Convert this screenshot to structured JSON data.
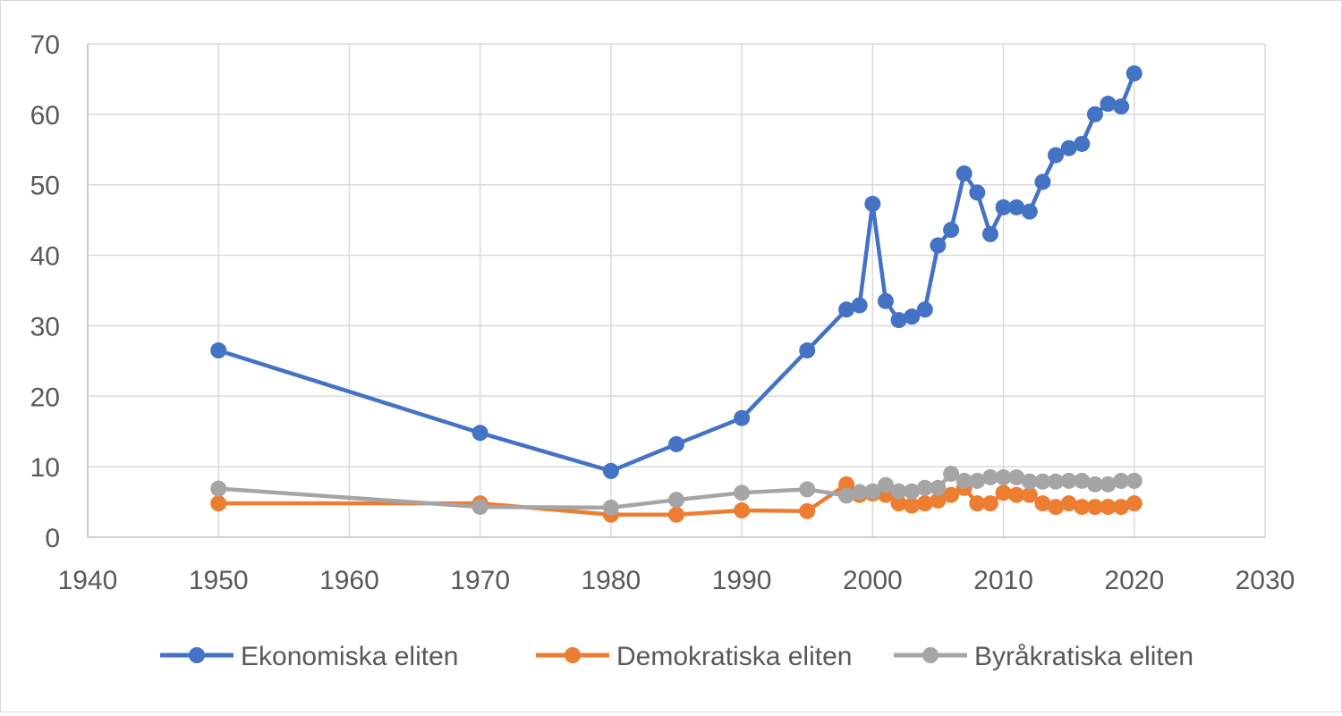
{
  "chart_data": {
    "type": "scatter",
    "mode": "lines+markers",
    "title": "",
    "xlabel": "",
    "ylabel": "",
    "xlim": [
      1940,
      2030
    ],
    "ylim": [
      0,
      70
    ],
    "x_ticks": [
      "1940",
      "1950",
      "1960",
      "1970",
      "1980",
      "1990",
      "2000",
      "2010",
      "2020",
      "2030"
    ],
    "y_ticks": [
      "0",
      "10",
      "20",
      "30",
      "40",
      "50",
      "60",
      "70"
    ],
    "grid": "on",
    "legend_position": "bottom",
    "series": [
      {
        "name": "Ekonomiska eliten",
        "color": "#4472c4",
        "x": [
          1950,
          1970,
          1980,
          1985,
          1990,
          1995,
          1998,
          1999,
          2000,
          2001,
          2002,
          2003,
          2004,
          2005,
          2006,
          2007,
          2008,
          2009,
          2010,
          2011,
          2012,
          2013,
          2014,
          2015,
          2016,
          2017,
          2018,
          2019,
          2020
        ],
        "y": [
          26.5,
          14.8,
          9.4,
          13.2,
          16.9,
          26.5,
          32.3,
          32.9,
          47.3,
          33.5,
          30.8,
          31.3,
          32.3,
          41.4,
          43.6,
          51.6,
          48.9,
          43.0,
          46.8,
          46.8,
          46.2,
          50.4,
          54.2,
          55.2,
          55.8,
          60.0,
          61.5,
          61.1,
          65.8
        ]
      },
      {
        "name": "Demokratiska eliten",
        "color": "#ed7d31",
        "x": [
          1950,
          1970,
          1980,
          1985,
          1990,
          1995,
          1998,
          1999,
          2000,
          2001,
          2002,
          2003,
          2004,
          2005,
          2006,
          2007,
          2008,
          2009,
          2010,
          2011,
          2012,
          2013,
          2014,
          2015,
          2016,
          2017,
          2018,
          2019,
          2020
        ],
        "y": [
          4.8,
          4.8,
          3.2,
          3.2,
          3.8,
          3.7,
          7.5,
          6.0,
          6.2,
          6.0,
          4.8,
          4.5,
          4.8,
          5.2,
          6.0,
          7.0,
          4.8,
          4.8,
          6.3,
          6.0,
          6.0,
          4.8,
          4.3,
          4.8,
          4.3,
          4.3,
          4.3,
          4.3,
          4.8
        ]
      },
      {
        "name": "Byråkratiska eliten",
        "color": "#a5a5a5",
        "x": [
          1950,
          1970,
          1980,
          1985,
          1990,
          1995,
          1998,
          1999,
          2000,
          2001,
          2002,
          2003,
          2004,
          2005,
          2006,
          2007,
          2008,
          2009,
          2010,
          2011,
          2012,
          2013,
          2014,
          2015,
          2016,
          2017,
          2018,
          2019,
          2020
        ],
        "y": [
          6.9,
          4.3,
          4.2,
          5.3,
          6.3,
          6.8,
          5.9,
          6.4,
          6.5,
          7.4,
          6.5,
          6.5,
          7.0,
          7.0,
          9.0,
          8.0,
          8.0,
          8.5,
          8.5,
          8.5,
          7.9,
          7.9,
          7.9,
          8.0,
          8.0,
          7.5,
          7.5,
          8.0,
          8.0
        ]
      }
    ]
  }
}
